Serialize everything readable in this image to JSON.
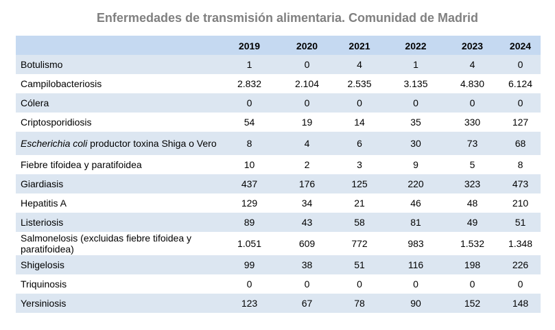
{
  "title": "Enfermedades de transmisión alimentaria. Comunidad de Madrid",
  "header": {
    "name": "",
    "years": [
      "2019",
      "2020",
      "2021",
      "2022",
      "2023",
      "2024"
    ]
  },
  "rows": [
    {
      "name": "Botulismo",
      "values": [
        "1",
        "0",
        "4",
        "1",
        "4",
        "0"
      ]
    },
    {
      "name": "Campilobacteriosis",
      "values": [
        "2.832",
        "2.104",
        "2.535",
        "3.135",
        "4.830",
        "6.124"
      ]
    },
    {
      "name": "Cólera",
      "values": [
        "0",
        "0",
        "0",
        "0",
        "0",
        "0"
      ]
    },
    {
      "name": "Criptosporidiosis",
      "values": [
        "54",
        "19",
        "14",
        "35",
        "330",
        "127"
      ]
    },
    {
      "name_italic": "Escherichia coli",
      "name_rest": " productor toxina Shiga o Vero",
      "values": [
        "8",
        "4",
        "6",
        "30",
        "73",
        "68"
      ]
    },
    {
      "name": "Fiebre tifoidea y paratifoidea",
      "values": [
        "10",
        "2",
        "3",
        "9",
        "5",
        "8"
      ]
    },
    {
      "name": "Giardiasis",
      "values": [
        "437",
        "176",
        "125",
        "220",
        "323",
        "473"
      ]
    },
    {
      "name": "Hepatitis A",
      "values": [
        "129",
        "34",
        "21",
        "46",
        "48",
        "210"
      ]
    },
    {
      "name": "Listeriosis",
      "values": [
        "89",
        "43",
        "58",
        "81",
        "49",
        "51"
      ]
    },
    {
      "name": "Salmonelosis (excluidas fiebre tifoidea y paratifoidea)",
      "values": [
        "1.051",
        "609",
        "772",
        "983",
        "1.532",
        "1.348"
      ]
    },
    {
      "name": "Shigelosis",
      "values": [
        "99",
        "38",
        "51",
        "116",
        "198",
        "226"
      ]
    },
    {
      "name": "Triquinosis",
      "values": [
        "0",
        "0",
        "0",
        "0",
        "0",
        "0"
      ]
    },
    {
      "name": "Yersiniosis",
      "values": [
        "123",
        "67",
        "78",
        "90",
        "152",
        "148"
      ]
    }
  ]
}
